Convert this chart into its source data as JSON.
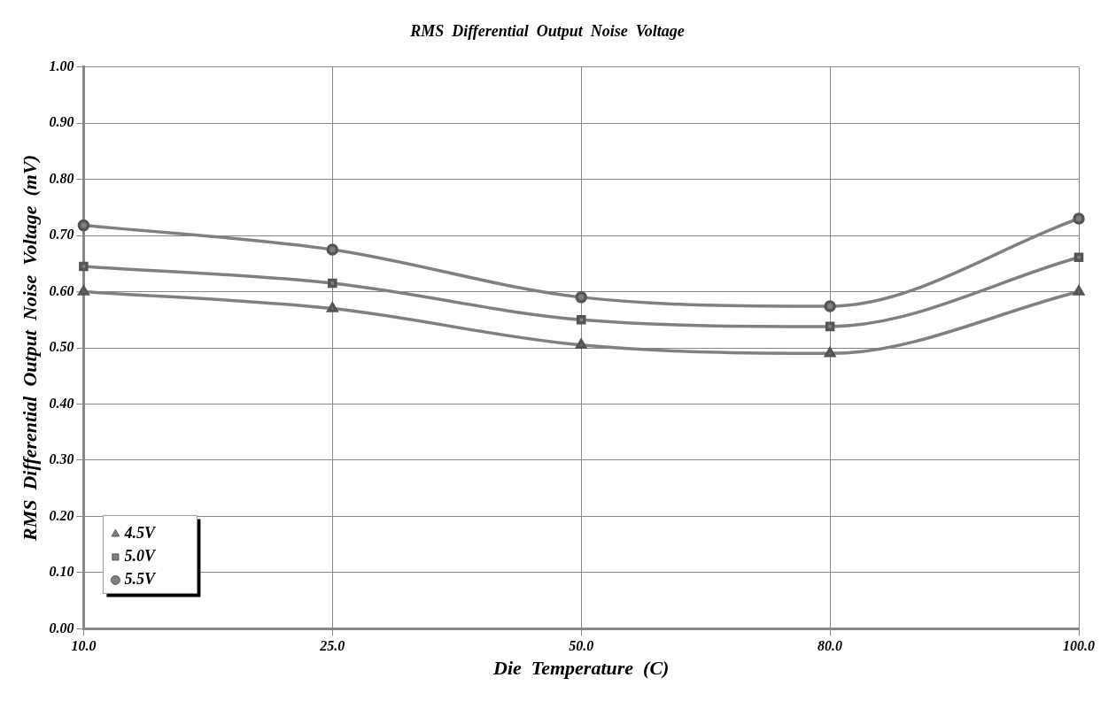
{
  "chart_data": {
    "type": "line",
    "title": "RMS  Differential  Output  Noise  Voltage",
    "xlabel": "Die  Temperature  (C)",
    "ylabel": "RMS  Differential  Output  Noise  Voltage  (mV)",
    "categories": [
      "10.0",
      "25.0",
      "50.0",
      "80.0",
      "100.0"
    ],
    "series": [
      {
        "name": "4.5V",
        "color": "#808080",
        "marker": "triangle",
        "values": [
          0.6,
          0.57,
          0.505,
          0.49,
          0.6
        ]
      },
      {
        "name": "5.0V",
        "color": "#808080",
        "marker": "square",
        "values": [
          0.645,
          0.615,
          0.55,
          0.538,
          0.661
        ]
      },
      {
        "name": "5.5V",
        "color": "#808080",
        "marker": "circle",
        "values": [
          0.718,
          0.675,
          0.59,
          0.574,
          0.73
        ]
      }
    ],
    "ylim": [
      0,
      1
    ],
    "yticks": [
      {
        "value": 0,
        "label": "0.00"
      },
      {
        "value": 0.1,
        "label": "0.10"
      },
      {
        "value": 0.2,
        "label": "0.20"
      },
      {
        "value": 0.3,
        "label": "0.30"
      },
      {
        "value": 0.4,
        "label": "0.40"
      },
      {
        "value": 0.5,
        "label": "0.50"
      },
      {
        "value": 0.6,
        "label": "0.60"
      },
      {
        "value": 0.7,
        "label": "0.70"
      },
      {
        "value": 0.8,
        "label": "0.80"
      },
      {
        "value": 0.9,
        "label": "0.90"
      },
      {
        "value": 1,
        "label": "1.00"
      }
    ],
    "grid": true,
    "legend": "bottom left"
  }
}
